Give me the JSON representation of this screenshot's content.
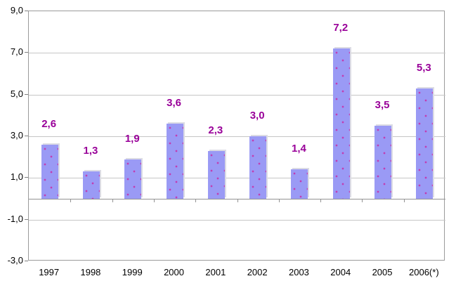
{
  "chart_data": {
    "type": "bar",
    "title": "",
    "xlabel": "",
    "ylabel": "",
    "categories": [
      "1997",
      "1998",
      "1999",
      "2000",
      "2001",
      "2002",
      "2003",
      "2004",
      "2005",
      "2006(*)"
    ],
    "values": [
      2.6,
      1.3,
      1.9,
      3.6,
      2.3,
      3.0,
      1.4,
      7.2,
      3.5,
      5.3
    ],
    "data_labels": [
      "2,6",
      "1,3",
      "1,9",
      "3,6",
      "2,3",
      "3,0",
      "1,4",
      "7,2",
      "3,5",
      "5,3"
    ],
    "y_tick_labels": [
      "9,0",
      "7,0",
      "5,0",
      "3,0",
      "1,0",
      "-1,0",
      "-3,0"
    ],
    "y_tick_values": [
      9,
      7,
      5,
      3,
      1,
      -1,
      -3
    ],
    "ylim": [
      -3,
      9
    ],
    "grid": true,
    "legend": false,
    "decimal_separator": ",",
    "colors": {
      "bar_fill": "#9a9af5",
      "bar_dot_pattern": "#c23ab0",
      "bar_shadow": "#dcdce4",
      "data_label": "#990099",
      "plot_border": "#9b9b9b",
      "gridline": "#c6c6c6",
      "zero_axis": "#939393",
      "tick_label": "#000000",
      "background": "#ffffff"
    }
  }
}
